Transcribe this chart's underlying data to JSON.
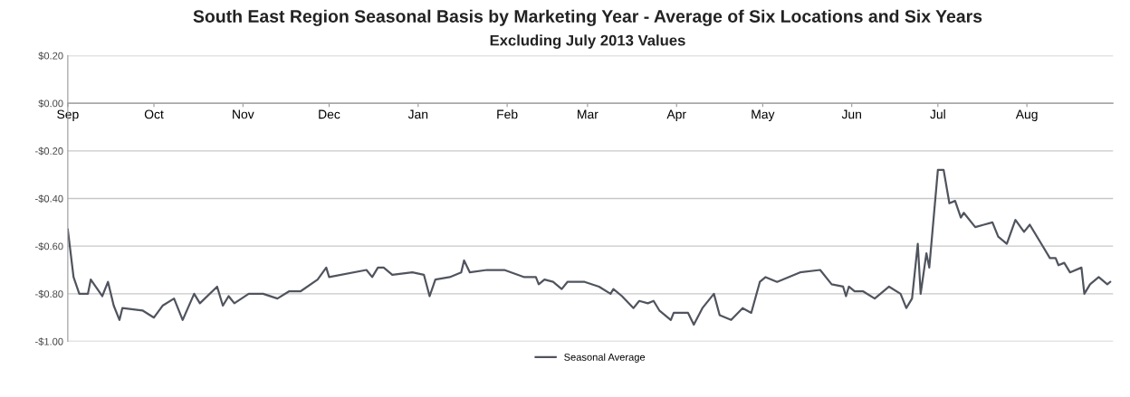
{
  "chart_data": {
    "type": "line",
    "title": "South East Region Seasonal Basis by Marketing Year - Average of Six Locations and Six Years",
    "subtitle": "Excluding July 2013 Values",
    "x": [
      "2013-09-01",
      "2013-09-03",
      "2013-09-05",
      "2013-09-08",
      "2013-09-09",
      "2013-09-13",
      "2013-09-15",
      "2013-09-17",
      "2013-09-19",
      "2013-09-20",
      "2013-09-27",
      "2013-10-01",
      "2013-10-04",
      "2013-10-08",
      "2013-10-11",
      "2013-10-15",
      "2013-10-17",
      "2013-10-23",
      "2013-10-25",
      "2013-10-27",
      "2013-10-29",
      "2013-11-03",
      "2013-11-08",
      "2013-11-13",
      "2013-11-17",
      "2013-11-21",
      "2013-11-27",
      "2013-11-30",
      "2013-12-01",
      "2013-12-14",
      "2013-12-16",
      "2013-12-18",
      "2013-12-20",
      "2013-12-23",
      "2013-12-30",
      "2014-01-03",
      "2014-01-05",
      "2014-01-07",
      "2014-01-12",
      "2014-01-16",
      "2014-01-17",
      "2014-01-19",
      "2014-01-25",
      "2014-01-31",
      "2014-02-07",
      "2014-02-11",
      "2014-02-12",
      "2014-02-14",
      "2014-02-17",
      "2014-02-20",
      "2014-02-22",
      "2014-02-28",
      "2014-03-05",
      "2014-03-09",
      "2014-03-10",
      "2014-03-13",
      "2014-03-17",
      "2014-03-19",
      "2014-03-22",
      "2014-03-24",
      "2014-03-26",
      "2014-03-30",
      "2014-03-31",
      "2014-04-05",
      "2014-04-07",
      "2014-04-10",
      "2014-04-14",
      "2014-04-16",
      "2014-04-20",
      "2014-04-24",
      "2014-04-27",
      "2014-04-30",
      "2014-05-02",
      "2014-05-06",
      "2014-05-14",
      "2014-05-21",
      "2014-05-25",
      "2014-05-29",
      "2014-05-30",
      "2014-05-31",
      "2014-06-02",
      "2014-06-05",
      "2014-06-09",
      "2014-06-14",
      "2014-06-18",
      "2014-06-20",
      "2014-06-22",
      "2014-06-24",
      "2014-06-25",
      "2014-06-27",
      "2014-06-28",
      "2014-07-01",
      "2014-07-03",
      "2014-07-05",
      "2014-07-07",
      "2014-07-09",
      "2014-07-10",
      "2014-07-14",
      "2014-07-17",
      "2014-07-20",
      "2014-07-22",
      "2014-07-25",
      "2014-07-28",
      "2014-07-31",
      "2014-08-02",
      "2014-08-06",
      "2014-08-09",
      "2014-08-11",
      "2014-08-12",
      "2014-08-14",
      "2014-08-16",
      "2014-08-20",
      "2014-08-21",
      "2014-08-23",
      "2014-08-26",
      "2014-08-29",
      "2014-08-30"
    ],
    "series": [
      {
        "name": "Seasonal Average",
        "color": "#50545e",
        "values": [
          -0.53,
          -0.73,
          -0.8,
          -0.8,
          -0.74,
          -0.81,
          -0.75,
          -0.85,
          -0.91,
          -0.86,
          -0.87,
          -0.9,
          -0.85,
          -0.82,
          -0.91,
          -0.8,
          -0.84,
          -0.77,
          -0.85,
          -0.81,
          -0.84,
          -0.8,
          -0.8,
          -0.82,
          -0.79,
          -0.79,
          -0.74,
          -0.69,
          -0.73,
          -0.7,
          -0.73,
          -0.69,
          -0.69,
          -0.72,
          -0.71,
          -0.72,
          -0.81,
          -0.74,
          -0.73,
          -0.71,
          -0.66,
          -0.71,
          -0.7,
          -0.7,
          -0.73,
          -0.73,
          -0.76,
          -0.74,
          -0.75,
          -0.78,
          -0.75,
          -0.75,
          -0.77,
          -0.8,
          -0.78,
          -0.81,
          -0.86,
          -0.83,
          -0.84,
          -0.83,
          -0.87,
          -0.91,
          -0.88,
          -0.88,
          -0.93,
          -0.86,
          -0.8,
          -0.89,
          -0.91,
          -0.86,
          -0.88,
          -0.75,
          -0.73,
          -0.75,
          -0.71,
          -0.7,
          -0.76,
          -0.77,
          -0.81,
          -0.77,
          -0.79,
          -0.79,
          -0.82,
          -0.77,
          -0.8,
          -0.86,
          -0.82,
          -0.59,
          -0.8,
          -0.63,
          -0.69,
          -0.28,
          -0.28,
          -0.42,
          -0.41,
          -0.48,
          -0.46,
          -0.52,
          -0.51,
          -0.5,
          -0.56,
          -0.59,
          -0.49,
          -0.54,
          -0.51,
          -0.59,
          -0.65,
          -0.65,
          -0.68,
          -0.67,
          -0.71,
          -0.69,
          -0.8,
          -0.76,
          -0.73,
          -0.76,
          -0.75
        ]
      }
    ],
    "xlim": [
      "2013-09-01",
      "2014-08-31"
    ],
    "xticks": [
      {
        "value": "2013-09-01",
        "label": "Sep"
      },
      {
        "value": "2013-10-01",
        "label": "Oct"
      },
      {
        "value": "2013-11-01",
        "label": "Nov"
      },
      {
        "value": "2013-12-01",
        "label": "Dec"
      },
      {
        "value": "2014-01-01",
        "label": "Jan"
      },
      {
        "value": "2014-02-01",
        "label": "Feb"
      },
      {
        "value": "2014-03-01",
        "label": "Mar"
      },
      {
        "value": "2014-04-01",
        "label": "Apr"
      },
      {
        "value": "2014-05-01",
        "label": "May"
      },
      {
        "value": "2014-06-01",
        "label": "Jun"
      },
      {
        "value": "2014-07-01",
        "label": "Jul"
      },
      {
        "value": "2014-08-01",
        "label": "Aug"
      }
    ],
    "ylim": [
      -1.0,
      0.2
    ],
    "yticks": [
      {
        "value": 0.2,
        "label": "$0.20"
      },
      {
        "value": 0,
        "label": "$0.00"
      },
      {
        "value": -0.2,
        "label": "-$0.20"
      },
      {
        "value": -0.4,
        "label": "-$0.40"
      },
      {
        "value": -0.6,
        "label": "-$0.60"
      },
      {
        "value": -0.8,
        "label": "-$0.80"
      },
      {
        "value": -1.0,
        "label": "-$1.00"
      }
    ],
    "grid": "y",
    "legend": "bottom",
    "marker": "none",
    "line_style": "solid"
  }
}
